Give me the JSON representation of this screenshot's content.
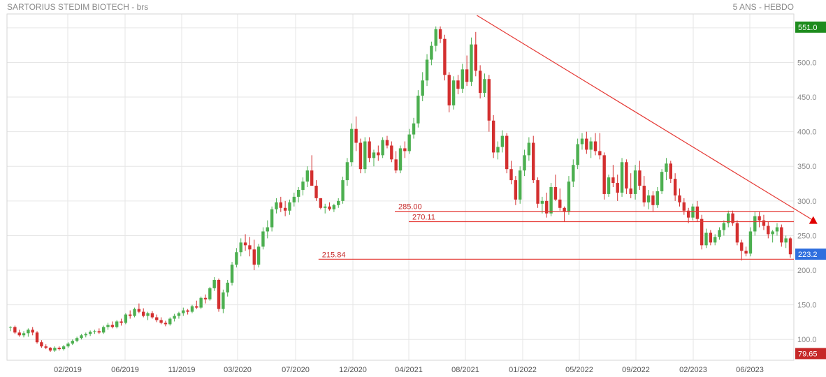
{
  "header": {
    "title": "SARTORIUS STEDIM BIOTECH - brs",
    "mode": "5 ANS - HEBDO"
  },
  "chart_data": {
    "type": "candlestick",
    "title": "SARTORIUS STEDIM BIOTECH - brs",
    "subtitle": "5 ANS - HEBDO",
    "xlabel": "",
    "ylabel": "",
    "ylim": [
      70,
      570
    ],
    "grid": true,
    "yticks": [
      100,
      150,
      200,
      250,
      300,
      350,
      400,
      450,
      500,
      550
    ],
    "ytick_labels": [
      "100.0",
      "150.0",
      "200.0",
      "250.0",
      "300.0",
      "350.0",
      "400.0",
      "450.0",
      "500.0",
      "550.0"
    ],
    "x_ticks": [
      "02/2019",
      "06/2019",
      "11/2019",
      "03/2020",
      "07/2020",
      "12/2020",
      "04/2021",
      "08/2021",
      "01/2022",
      "05/2022",
      "09/2022",
      "02/2023",
      "06/2023"
    ],
    "colors": {
      "up": "#4caf50",
      "down": "#d32f2f",
      "line": "#e53935",
      "grid": "#e6e6e6",
      "axis_text": "#8a8a8a"
    },
    "price_labels": [
      {
        "value": 551.0,
        "text": "551.0",
        "color": "#1e8c1e"
      },
      {
        "value": 223.2,
        "text": "223.2",
        "color": "#2f6fde"
      },
      {
        "value": 79.65,
        "text": "79.65",
        "color": "#c62828"
      }
    ],
    "levels": [
      {
        "value": 285.0,
        "text": "285.00",
        "from": "03/2021"
      },
      {
        "value": 270.11,
        "text": "270.11",
        "from": "04/2021"
      },
      {
        "value": 215.84,
        "text": "215.84",
        "from": "09/2020"
      }
    ],
    "trendline": {
      "from": {
        "date": "09/2021",
        "value": 568
      },
      "to": {
        "date": "09/2023",
        "value": 272
      }
    },
    "marker": {
      "type": "triangle-up",
      "date": "09/2023",
      "value": 271
    },
    "series": [
      {
        "values": [
          [
            117,
            119,
            112,
            118
          ],
          [
            118,
            120,
            108,
            110
          ],
          [
            110,
            114,
            104,
            106
          ],
          [
            106,
            112,
            103,
            109
          ],
          [
            109,
            116,
            104,
            114
          ],
          [
            114,
            118,
            106,
            110
          ],
          [
            110,
            112,
            94,
            96
          ],
          [
            96,
            99,
            88,
            90
          ],
          [
            90,
            93,
            86,
            88
          ],
          [
            88,
            89,
            82,
            84
          ],
          [
            84,
            90,
            82,
            88
          ],
          [
            88,
            90,
            84,
            86
          ],
          [
            86,
            92,
            84,
            90
          ],
          [
            90,
            96,
            88,
            94
          ],
          [
            94,
            100,
            92,
            98
          ],
          [
            98,
            104,
            96,
            102
          ],
          [
            102,
            108,
            100,
            106
          ],
          [
            106,
            110,
            103,
            108
          ],
          [
            108,
            113,
            105,
            111
          ],
          [
            111,
            114,
            108,
            112
          ],
          [
            112,
            116,
            108,
            110
          ],
          [
            110,
            120,
            108,
            118
          ],
          [
            118,
            124,
            114,
            121
          ],
          [
            121,
            126,
            116,
            118
          ],
          [
            118,
            128,
            116,
            126
          ],
          [
            126,
            130,
            120,
            124
          ],
          [
            124,
            138,
            122,
            136
          ],
          [
            136,
            142,
            130,
            134
          ],
          [
            134,
            146,
            132,
            144
          ],
          [
            144,
            152,
            138,
            140
          ],
          [
            140,
            145,
            132,
            134
          ],
          [
            134,
            140,
            128,
            138
          ],
          [
            138,
            141,
            130,
            132
          ],
          [
            132,
            136,
            125,
            128
          ],
          [
            128,
            132,
            122,
            124
          ],
          [
            124,
            127,
            119,
            122
          ],
          [
            122,
            132,
            120,
            130
          ],
          [
            130,
            137,
            126,
            134
          ],
          [
            134,
            140,
            130,
            138
          ],
          [
            138,
            146,
            134,
            142
          ],
          [
            142,
            144,
            136,
            140
          ],
          [
            140,
            150,
            138,
            148
          ],
          [
            148,
            156,
            144,
            146
          ],
          [
            146,
            162,
            144,
            160
          ],
          [
            160,
            165,
            152,
            158
          ],
          [
            158,
            176,
            156,
            174
          ],
          [
            174,
            190,
            170,
            186
          ],
          [
            186,
            188,
            140,
            144
          ],
          [
            144,
            172,
            138,
            168
          ],
          [
            168,
            186,
            162,
            182
          ],
          [
            182,
            212,
            178,
            208
          ],
          [
            208,
            232,
            204,
            226
          ],
          [
            226,
            246,
            220,
            240
          ],
          [
            240,
            252,
            228,
            236
          ],
          [
            236,
            248,
            220,
            230
          ],
          [
            230,
            244,
            200,
            208
          ],
          [
            208,
            238,
            204,
            234
          ],
          [
            234,
            262,
            230,
            256
          ],
          [
            256,
            272,
            246,
            262
          ],
          [
            262,
            292,
            256,
            288
          ],
          [
            288,
            304,
            282,
            298
          ],
          [
            298,
            306,
            284,
            290
          ],
          [
            290,
            300,
            278,
            286
          ],
          [
            286,
            302,
            280,
            298
          ],
          [
            298,
            312,
            292,
            306
          ],
          [
            306,
            320,
            298,
            316
          ],
          [
            316,
            334,
            308,
            328
          ],
          [
            328,
            350,
            320,
            344
          ],
          [
            344,
            366,
            330,
            322
          ],
          [
            322,
            330,
            300,
            304
          ],
          [
            304,
            304,
            288,
            290
          ],
          [
            290,
            296,
            282,
            292
          ],
          [
            292,
            298,
            286,
            288
          ],
          [
            288,
            296,
            284,
            294
          ],
          [
            294,
            304,
            290,
            300
          ],
          [
            300,
            335,
            296,
            330
          ],
          [
            330,
            362,
            322,
            356
          ],
          [
            356,
            412,
            350,
            404
          ],
          [
            404,
            422,
            372,
            384
          ],
          [
            384,
            390,
            340,
            346
          ],
          [
            346,
            392,
            340,
            386
          ],
          [
            386,
            392,
            356,
            362
          ],
          [
            362,
            374,
            350,
            370
          ],
          [
            370,
            380,
            358,
            366
          ],
          [
            366,
            392,
            362,
            388
          ],
          [
            388,
            394,
            376,
            380
          ],
          [
            380,
            386,
            356,
            360
          ],
          [
            360,
            372,
            340,
            344
          ],
          [
            344,
            380,
            340,
            376
          ],
          [
            376,
            386,
            362,
            372
          ],
          [
            372,
            404,
            368,
            396
          ],
          [
            396,
            420,
            390,
            412
          ],
          [
            412,
            460,
            406,
            452
          ],
          [
            452,
            486,
            444,
            474
          ],
          [
            474,
            512,
            466,
            504
          ],
          [
            504,
            530,
            496,
            524
          ],
          [
            524,
            552,
            516,
            548
          ],
          [
            548,
            552,
            528,
            534
          ],
          [
            534,
            540,
            474,
            482
          ],
          [
            482,
            486,
            428,
            438
          ],
          [
            438,
            480,
            432,
            474
          ],
          [
            474,
            482,
            454,
            462
          ],
          [
            462,
            498,
            456,
            490
          ],
          [
            490,
            510,
            466,
            472
          ],
          [
            472,
            536,
            466,
            526
          ],
          [
            526,
            544,
            480,
            488
          ],
          [
            488,
            496,
            448,
            456
          ],
          [
            456,
            484,
            450,
            476
          ],
          [
            476,
            482,
            400,
            416
          ],
          [
            416,
            424,
            362,
            370
          ],
          [
            370,
            386,
            360,
            378
          ],
          [
            378,
            402,
            370,
            394
          ],
          [
            394,
            398,
            340,
            346
          ],
          [
            346,
            358,
            324,
            330
          ],
          [
            330,
            336,
            294,
            302
          ],
          [
            302,
            350,
            296,
            344
          ],
          [
            344,
            374,
            336,
            366
          ],
          [
            366,
            392,
            358,
            384
          ],
          [
            384,
            394,
            326,
            330
          ],
          [
            330,
            334,
            290,
            296
          ],
          [
            296,
            306,
            282,
            300
          ],
          [
            300,
            312,
            276,
            282
          ],
          [
            282,
            326,
            278,
            320
          ],
          [
            320,
            338,
            300,
            302
          ],
          [
            302,
            318,
            286,
            290
          ],
          [
            290,
            292,
            270,
            284
          ],
          [
            284,
            336,
            280,
            328
          ],
          [
            328,
            360,
            320,
            352
          ],
          [
            352,
            390,
            346,
            382
          ],
          [
            382,
            398,
            374,
            390
          ],
          [
            390,
            400,
            368,
            374
          ],
          [
            374,
            392,
            362,
            386
          ],
          [
            386,
            398,
            366,
            372
          ],
          [
            372,
            398,
            360,
            366
          ],
          [
            366,
            370,
            302,
            310
          ],
          [
            310,
            338,
            306,
            334
          ],
          [
            334,
            352,
            320,
            326
          ],
          [
            326,
            338,
            300,
            312
          ],
          [
            312,
            362,
            306,
            356
          ],
          [
            356,
            360,
            310,
            318
          ],
          [
            318,
            340,
            304,
            310
          ],
          [
            310,
            352,
            302,
            344
          ],
          [
            344,
            358,
            316,
            322
          ],
          [
            322,
            336,
            292,
            298
          ],
          [
            298,
            316,
            288,
            308
          ],
          [
            308,
            314,
            284,
            294
          ],
          [
            294,
            320,
            290,
            314
          ],
          [
            314,
            346,
            310,
            342
          ],
          [
            342,
            362,
            330,
            354
          ],
          [
            354,
            358,
            326,
            332
          ],
          [
            332,
            340,
            300,
            308
          ],
          [
            308,
            318,
            292,
            298
          ],
          [
            298,
            304,
            280,
            286
          ],
          [
            286,
            290,
            268,
            276
          ],
          [
            276,
            296,
            272,
            292
          ],
          [
            292,
            300,
            270,
            274
          ],
          [
            274,
            280,
            230,
            236
          ],
          [
            236,
            260,
            232,
            254
          ],
          [
            254,
            258,
            236,
            240
          ],
          [
            240,
            252,
            236,
            248
          ],
          [
            248,
            262,
            244,
            258
          ],
          [
            258,
            272,
            250,
            268
          ],
          [
            268,
            286,
            262,
            282
          ],
          [
            282,
            286,
            264,
            268
          ],
          [
            268,
            272,
            236,
            240
          ],
          [
            240,
            244,
            214,
            228
          ],
          [
            228,
            234,
            220,
            224
          ],
          [
            224,
            262,
            220,
            256
          ],
          [
            256,
            284,
            250,
            278
          ],
          [
            278,
            284,
            262,
            272
          ],
          [
            272,
            280,
            258,
            264
          ],
          [
            264,
            270,
            246,
            252
          ],
          [
            252,
            258,
            240,
            256
          ],
          [
            256,
            268,
            250,
            262
          ],
          [
            262,
            266,
            234,
            240
          ],
          [
            240,
            250,
            232,
            246
          ],
          [
            246,
            248,
            218,
            223
          ]
        ]
      }
    ]
  }
}
